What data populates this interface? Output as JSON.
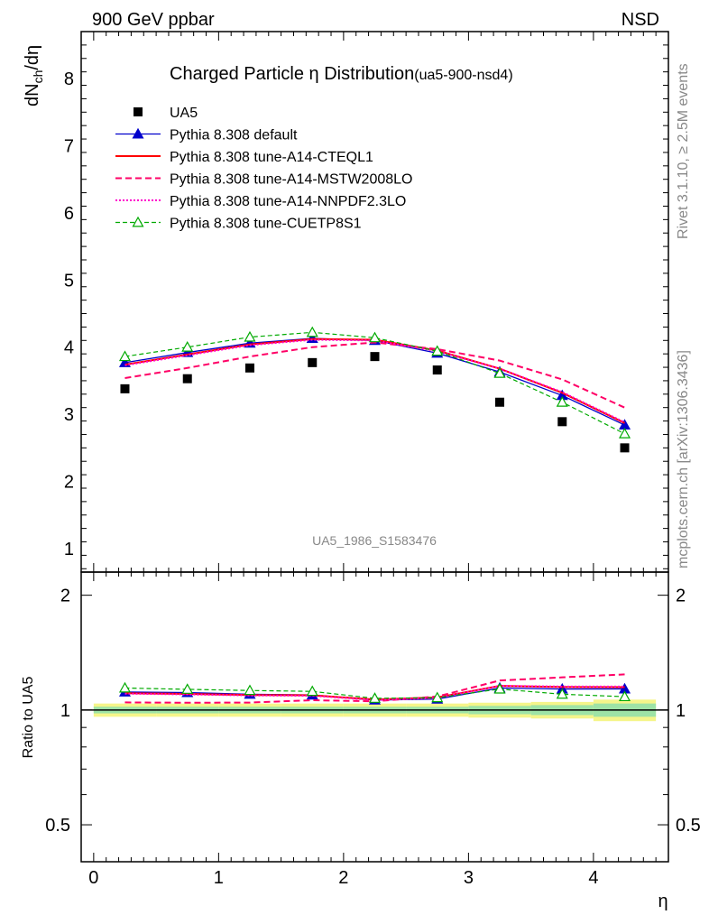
{
  "header": {
    "energy": "900 GeV ppbar",
    "process": "NSD"
  },
  "side_labels": {
    "rivet": "Rivet 3.1.10, ≥ 2.5M events",
    "mcplots": "mcplots.cern.ch [arXiv:1306.3436]"
  },
  "watermark": "UA5_1986_S1583476",
  "chart_data": [
    {
      "type": "scatter",
      "title": "Charged Particle η Distribution",
      "subtitle": "(ua5-900-nsd4)",
      "xlabel": "η",
      "ylabel": "dN_ch/dη",
      "xlim": [
        -0.1,
        4.6
      ],
      "ylim": [
        0.65,
        8.7
      ],
      "yticks": [
        "1",
        "2",
        "3",
        "4",
        "5",
        "6",
        "7",
        "8"
      ],
      "xticks": [
        "0",
        "1",
        "2",
        "3",
        "4"
      ],
      "x": [
        0.25,
        0.75,
        1.25,
        1.75,
        2.25,
        2.75,
        3.25,
        3.75,
        4.25
      ],
      "legend_position": "top-left",
      "series": [
        {
          "name": "UA5",
          "style": "data",
          "color": "#000000",
          "values": [
            3.38,
            3.53,
            3.69,
            3.77,
            3.86,
            3.66,
            3.18,
            2.89,
            2.5
          ]
        },
        {
          "name": "Pythia 8.308 default",
          "style": "solid-triangle",
          "color": "#0000cc",
          "values": [
            3.77,
            3.92,
            4.06,
            4.13,
            4.1,
            3.91,
            3.63,
            3.28,
            2.84
          ]
        },
        {
          "name": "Pythia 8.308 tune-A14-CTEQL1",
          "style": "solid",
          "color": "#ff0000",
          "values": [
            3.74,
            3.89,
            4.04,
            4.12,
            4.11,
            3.95,
            3.68,
            3.32,
            2.87
          ]
        },
        {
          "name": "Pythia 8.308 tune-A14-MSTW2008LO",
          "style": "dashed",
          "color": "#ff0066",
          "values": [
            3.54,
            3.69,
            3.86,
            4.0,
            4.07,
            3.97,
            3.8,
            3.52,
            3.1
          ]
        },
        {
          "name": "Pythia 8.308 tune-A14-NNPDF2.3LO",
          "style": "dotted",
          "color": "#ff00cc",
          "values": [
            3.73,
            3.88,
            4.03,
            4.11,
            4.1,
            3.94,
            3.68,
            3.33,
            2.88
          ]
        },
        {
          "name": "Pythia 8.308 tune-CUETP8S1",
          "style": "dashed-open-triangle",
          "color": "#00aa00",
          "values": [
            3.86,
            4.0,
            4.15,
            4.22,
            4.14,
            3.94,
            3.61,
            3.18,
            2.71
          ]
        }
      ]
    },
    {
      "type": "line",
      "xlabel": "η",
      "ylabel": "Ratio to UA5",
      "xlim": [
        -0.1,
        4.6
      ],
      "ylim": [
        0.4,
        2.3
      ],
      "yticks": [
        "0.5",
        "1",
        "2"
      ],
      "xticks": [
        "0",
        "1",
        "2",
        "3",
        "4"
      ],
      "x": [
        0.25,
        0.75,
        1.25,
        1.75,
        2.25,
        2.75,
        3.25,
        3.75,
        4.25
      ],
      "band_edges": [
        0,
        0.5,
        1,
        1.5,
        2,
        2.5,
        3,
        3.5,
        4,
        4.5
      ],
      "band_stat": [
        0.02,
        0.02,
        0.02,
        0.02,
        0.02,
        0.02,
        0.025,
        0.03,
        0.04
      ],
      "band_total": [
        0.04,
        0.04,
        0.04,
        0.04,
        0.04,
        0.04,
        0.045,
        0.05,
        0.065
      ],
      "series": [
        {
          "name": "Pythia 8.308 default",
          "style": "solid-triangle",
          "color": "#0000cc",
          "values": [
            1.115,
            1.111,
            1.1,
            1.095,
            1.062,
            1.068,
            1.142,
            1.135,
            1.136
          ]
        },
        {
          "name": "Pythia 8.308 tune-A14-CTEQL1",
          "style": "solid",
          "color": "#ff0000",
          "values": [
            1.107,
            1.102,
            1.095,
            1.093,
            1.065,
            1.079,
            1.157,
            1.149,
            1.148
          ]
        },
        {
          "name": "Pythia 8.308 tune-A14-MSTW2008LO",
          "style": "dashed",
          "color": "#ff0066",
          "values": [
            1.047,
            1.045,
            1.046,
            1.061,
            1.054,
            1.085,
            1.195,
            1.218,
            1.24
          ]
        },
        {
          "name": "Pythia 8.308 tune-A14-NNPDF2.3LO",
          "style": "dotted",
          "color": "#ff00cc",
          "values": [
            1.104,
            1.099,
            1.092,
            1.09,
            1.062,
            1.076,
            1.157,
            1.152,
            1.152
          ]
        },
        {
          "name": "Pythia 8.308 tune-CUETP8S1",
          "style": "dashed-open-triangle",
          "color": "#00aa00",
          "values": [
            1.142,
            1.133,
            1.125,
            1.119,
            1.073,
            1.077,
            1.135,
            1.1,
            1.084
          ]
        }
      ]
    }
  ]
}
